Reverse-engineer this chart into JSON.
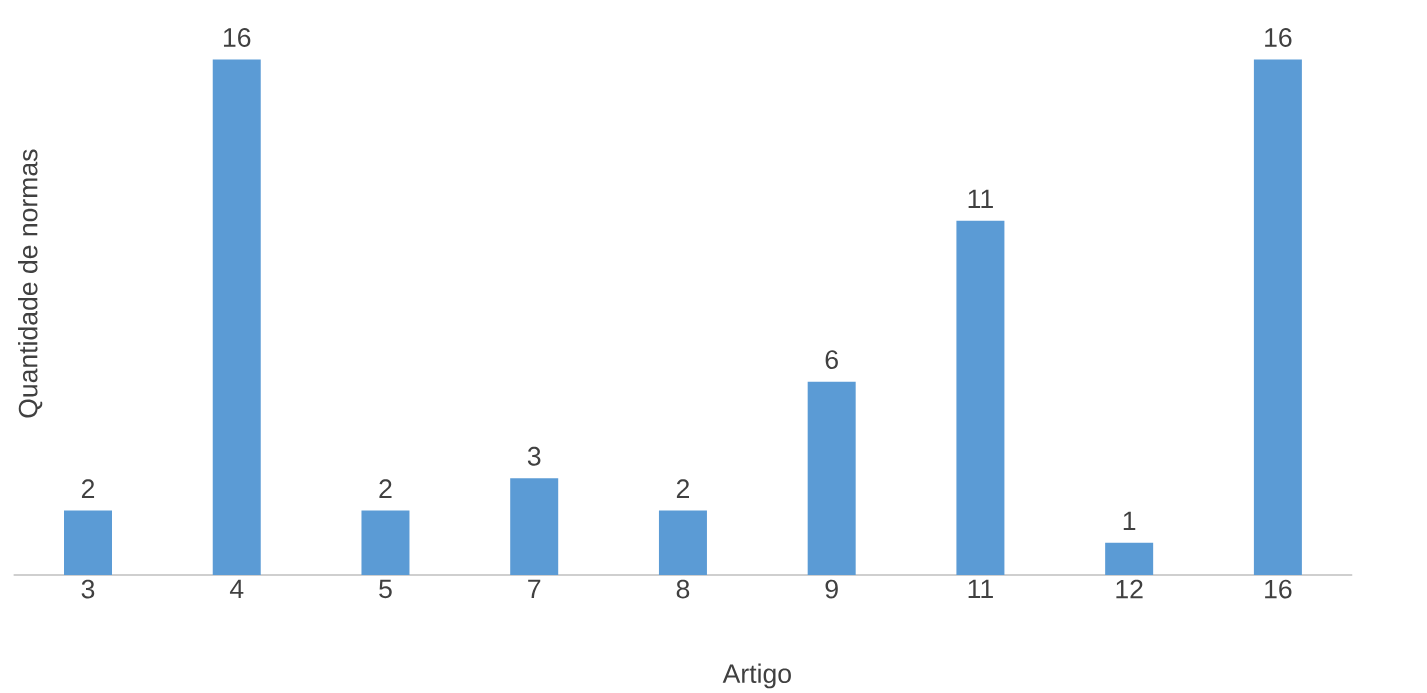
{
  "chart_data": {
    "type": "bar",
    "xlabel": "Artigo",
    "ylabel": "Quantidade de normas",
    "categories": [
      "3",
      "4",
      "5",
      "7",
      "8",
      "9",
      "11",
      "12",
      "16"
    ],
    "values": [
      2,
      16,
      2,
      3,
      2,
      6,
      11,
      1,
      16
    ],
    "color": "#5b9bd5",
    "data_labels": true
  }
}
